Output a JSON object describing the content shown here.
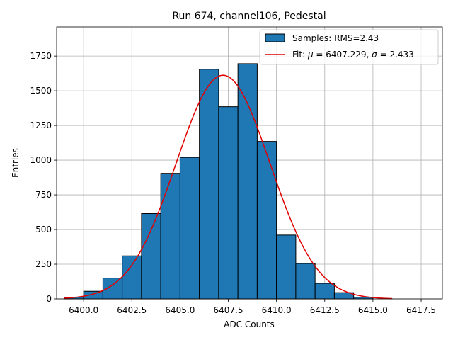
{
  "chart_data": {
    "type": "bar",
    "title": "Run 674, channel106, Pedestal",
    "xlabel": "ADC Counts",
    "ylabel": "Entries",
    "xlim": [
      6398.6,
      6418.6
    ],
    "ylim": [
      0,
      1960
    ],
    "grid": true,
    "legend_placement": "top-right",
    "x_ticks": [
      6400.0,
      6402.5,
      6405.0,
      6407.5,
      6410.0,
      6412.5,
      6415.0,
      6417.5
    ],
    "x_tick_labels": [
      "6400.0",
      "6402.5",
      "6405.0",
      "6407.5",
      "6410.0",
      "6412.5",
      "6415.0",
      "6417.5"
    ],
    "y_ticks": [
      0,
      250,
      500,
      750,
      1000,
      1250,
      1500,
      1750
    ],
    "y_tick_labels": [
      "0",
      "250",
      "500",
      "750",
      "1000",
      "1250",
      "1500",
      "1750"
    ],
    "bins": [
      {
        "x0": 6399.0,
        "x1": 6400.0,
        "value": 12
      },
      {
        "x0": 6400.0,
        "x1": 6401.0,
        "value": 55
      },
      {
        "x0": 6401.0,
        "x1": 6402.0,
        "value": 150
      },
      {
        "x0": 6402.0,
        "x1": 6403.0,
        "value": 310
      },
      {
        "x0": 6403.0,
        "x1": 6404.0,
        "value": 615
      },
      {
        "x0": 6404.0,
        "x1": 6405.0,
        "value": 905
      },
      {
        "x0": 6405.0,
        "x1": 6406.0,
        "value": 1020
      },
      {
        "x0": 6406.0,
        "x1": 6407.0,
        "value": 1655
      },
      {
        "x0": 6407.0,
        "x1": 6408.0,
        "value": 1385
      },
      {
        "x0": 6408.0,
        "x1": 6409.0,
        "value": 1695
      },
      {
        "x0": 6409.0,
        "x1": 6410.0,
        "value": 1135
      },
      {
        "x0": 6410.0,
        "x1": 6411.0,
        "value": 460
      },
      {
        "x0": 6411.0,
        "x1": 6412.0,
        "value": 255
      },
      {
        "x0": 6412.0,
        "x1": 6413.0,
        "value": 112
      },
      {
        "x0": 6413.0,
        "x1": 6414.0,
        "value": 45
      },
      {
        "x0": 6414.0,
        "x1": 6415.0,
        "value": 12
      }
    ],
    "fit": {
      "type": "gaussian",
      "mu": 6407.229,
      "sigma": 2.433,
      "amplitude": 1612,
      "x_range": [
        6399.0,
        6416.0
      ]
    },
    "series": [
      {
        "name": "Samples: RMS=2.43",
        "kind": "histogram",
        "color": "#1f77b4"
      },
      {
        "name_prefix": "Fit: ",
        "name_mu": "μ",
        "name_mid": " = 6407.229, ",
        "name_sigma": "σ",
        "name_suffix": " = 2.433",
        "kind": "line",
        "color": "#e00000"
      }
    ]
  }
}
